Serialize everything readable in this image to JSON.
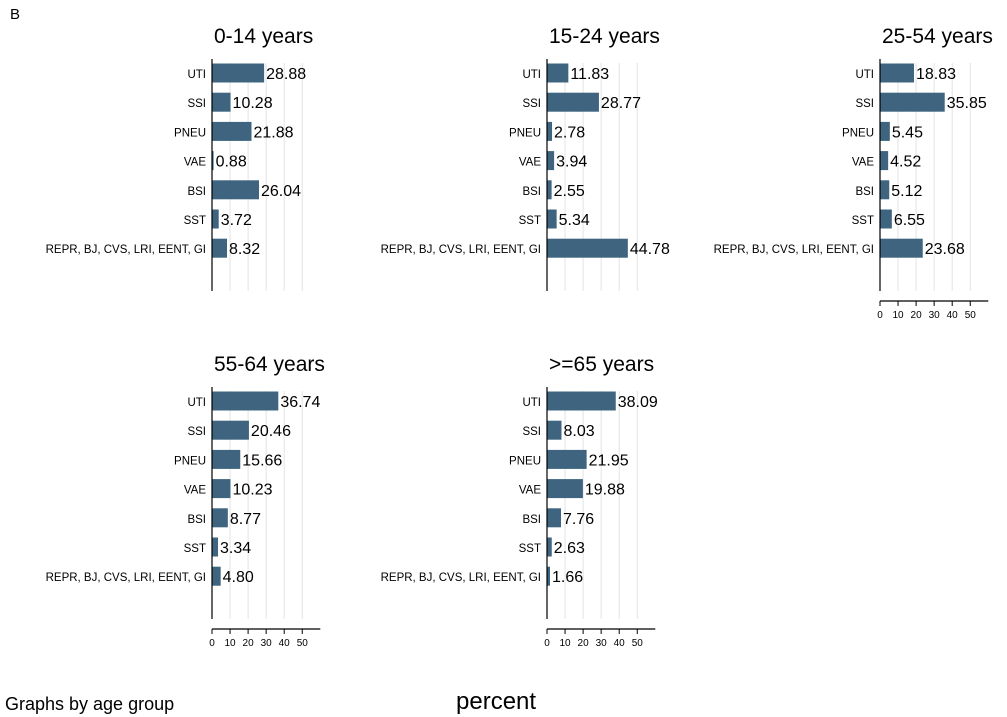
{
  "panel_label": "B",
  "note": "Graphs by age group",
  "x_axis_title": "percent",
  "colors": {
    "bar": "#3e6480",
    "grid": "#e3e3e3",
    "axis": "#000000"
  },
  "chart_data": {
    "type": "bar",
    "orientation": "horizontal",
    "categories": [
      "UTI",
      "SSI",
      "PNEU",
      "VAE",
      "BSI",
      "SST",
      "REPR, BJ, CVS, LRI, EENT, GI"
    ],
    "xlim": [
      0,
      60
    ],
    "xticks": [
      0,
      10,
      20,
      30,
      40,
      50
    ],
    "grid": true,
    "panels": [
      {
        "title": "0-14 years",
        "values": [
          28.88,
          10.28,
          21.88,
          0.88,
          26.04,
          3.72,
          8.32
        ],
        "labels": [
          "28.88",
          "10.28",
          "21.88",
          "0.88",
          "26.04",
          "3.72",
          "8.32"
        ],
        "show_xticks": false
      },
      {
        "title": "15-24 years",
        "values": [
          11.83,
          28.77,
          2.78,
          3.94,
          2.55,
          5.34,
          44.78
        ],
        "labels": [
          "11.83",
          "28.77",
          "2.78",
          "3.94",
          "2.55",
          "5.34",
          "44.78"
        ],
        "show_xticks": false
      },
      {
        "title": "25-54 years",
        "values": [
          18.83,
          35.85,
          5.45,
          4.52,
          5.12,
          6.55,
          23.68
        ],
        "labels": [
          "18.83",
          "35.85",
          "5.45",
          "4.52",
          "5.12",
          "6.55",
          "23.68"
        ],
        "show_xticks": true
      },
      {
        "title": "55-64 years",
        "values": [
          36.74,
          20.46,
          15.66,
          10.23,
          8.77,
          3.34,
          4.8
        ],
        "labels": [
          "36.74",
          "20.46",
          "15.66",
          "10.23",
          "8.77",
          "3.34",
          "4.80"
        ],
        "show_xticks": true
      },
      {
        "title": ">=65 years",
        "values": [
          38.09,
          8.03,
          21.95,
          19.88,
          7.76,
          2.63,
          1.66
        ],
        "labels": [
          "38.09",
          "8.03",
          "21.95",
          "19.88",
          "7.76",
          "2.63",
          "1.66"
        ],
        "show_xticks": true
      }
    ]
  }
}
